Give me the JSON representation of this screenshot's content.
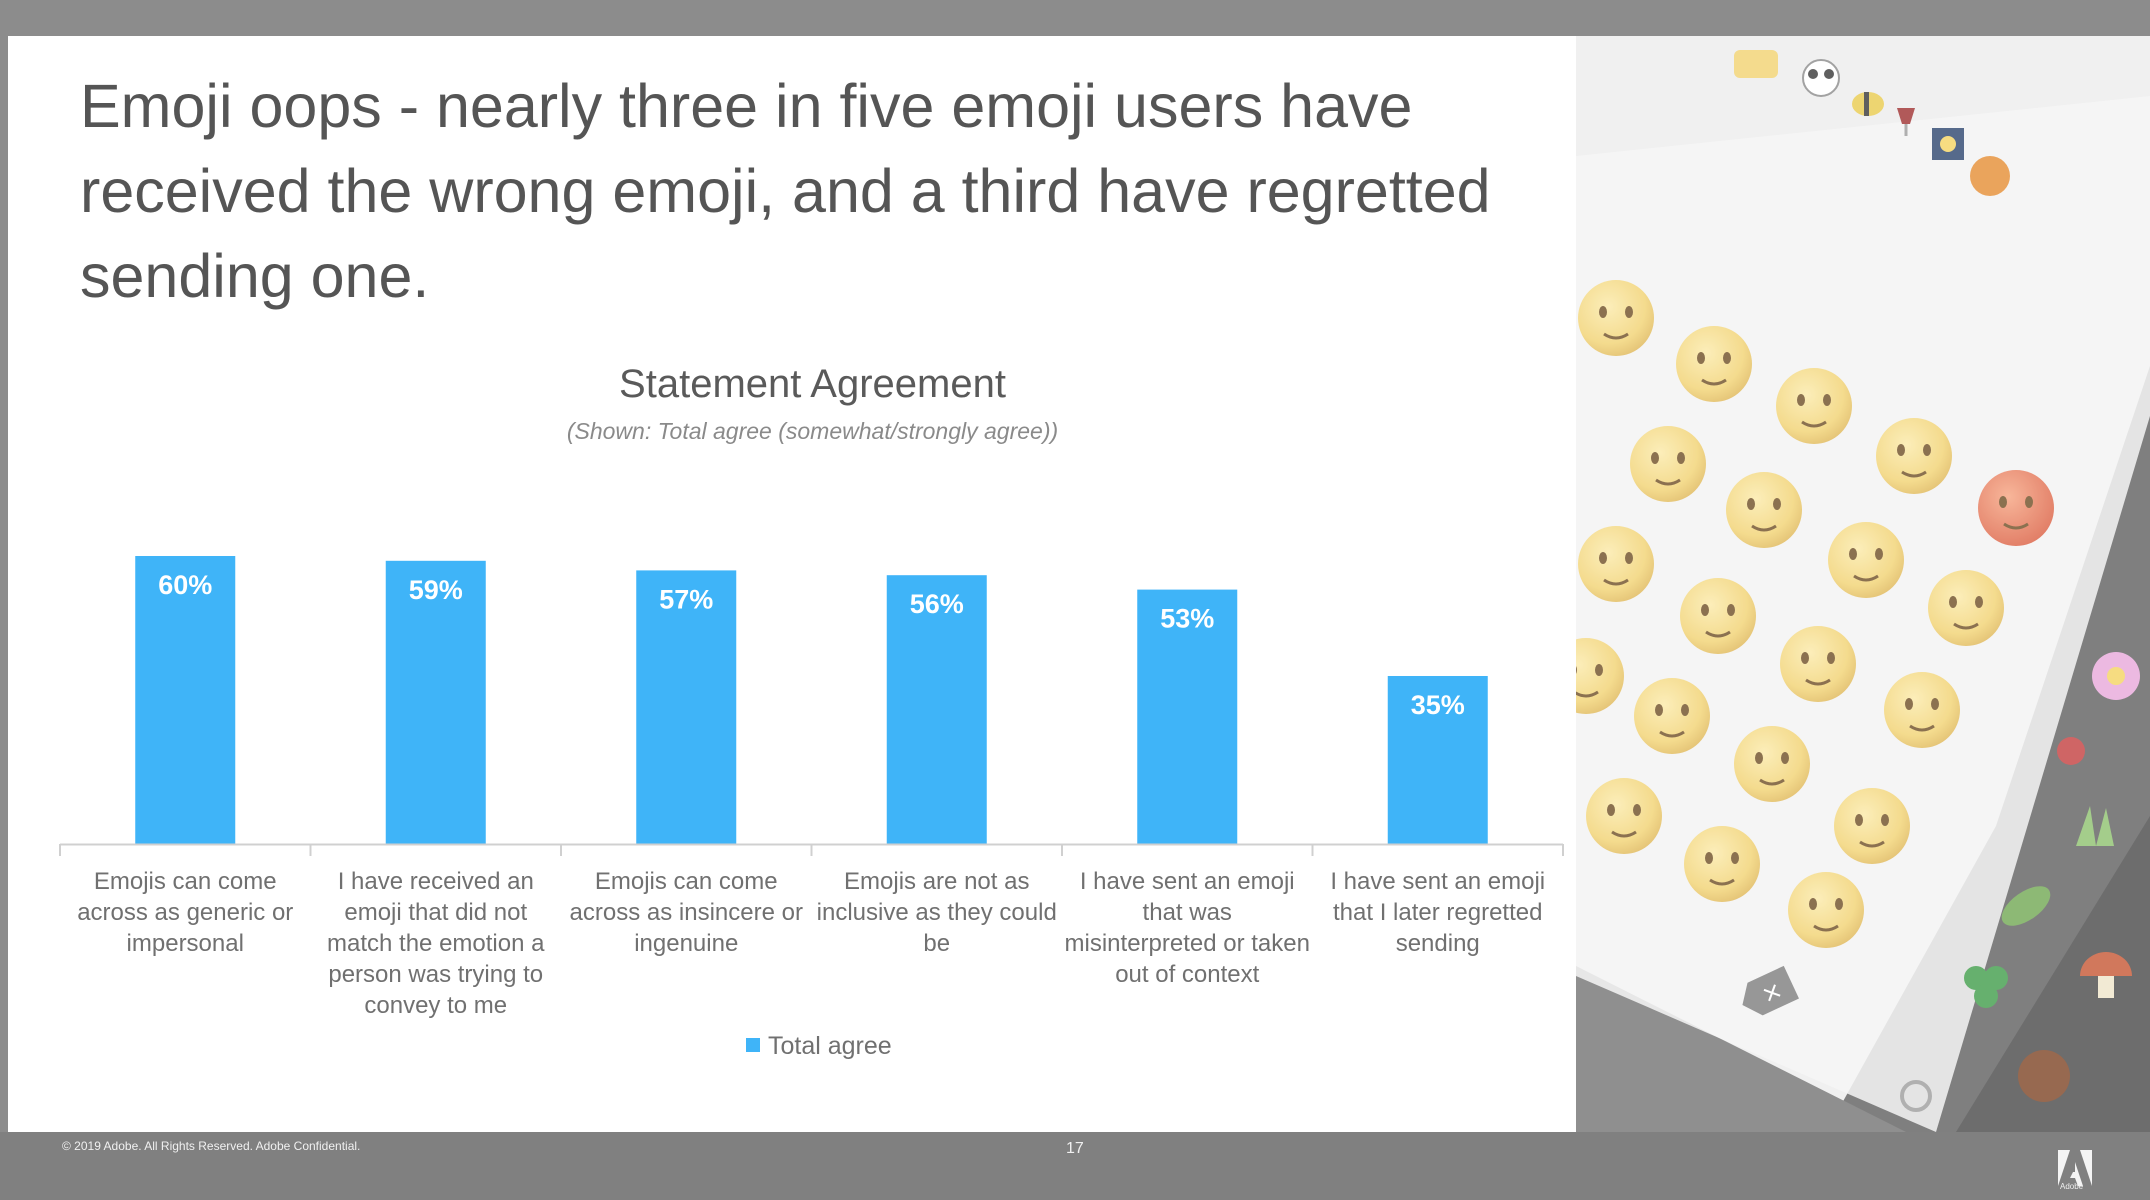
{
  "slide": {
    "title": "Emoji oops - nearly three in five emoji users have received the wrong emoji, and a third have regretted sending one.",
    "footer_copyright": "© 2019 Adobe.  All Rights Reserved. Adobe Confidential.",
    "page_number": "17",
    "logo_text": "Adobe"
  },
  "colors": {
    "bar": "#3fb4f8",
    "frame": "#8c8c8c",
    "title": "#555555"
  },
  "chart_data": {
    "type": "bar",
    "title": "Statement Agreement",
    "subtitle": "(Shown: Total agree (somewhat/strongly agree))",
    "categories": [
      "Emojis can come across as generic or impersonal",
      "I have received an emoji that did not match the emotion a person was trying to convey to me",
      "Emojis can come across as insincere or ingenuine",
      "Emojis are not as inclusive as they could be",
      "I have sent an emoji that was misinterpreted or taken out of context",
      "I have sent an emoji that I later regretted sending"
    ],
    "series": [
      {
        "name": "Total agree",
        "values": [
          60,
          59,
          57,
          56,
          53,
          35
        ]
      }
    ],
    "data_labels": [
      "60%",
      "59%",
      "57%",
      "56%",
      "53%",
      "35%"
    ],
    "ylim": [
      0,
      60
    ],
    "grid": false,
    "legend_position": "bottom"
  },
  "photo": {
    "icons": [
      "heart-eyes-face-icon",
      "unamused-face-icon",
      "kissing-face-icon",
      "winking-tongue-face-icon",
      "angry-face-icon",
      "sweat-face-icon",
      "kissing-heart-face-icon",
      "squinting-tongue-face-icon",
      "relieved-face-icon",
      "kissing-smiling-eyes-face-icon",
      "disappointed-face-icon",
      "crying-face-icon",
      "smiling-face-icon",
      "confused-face-icon",
      "persevering-face-icon",
      "tongue-face-icon",
      "frowning-face-icon",
      "sad-face-icon",
      "panda-icon",
      "bee-icon",
      "wine-glass-icon",
      "pumpkin-icon",
      "flower-icon",
      "clover-icon",
      "mushroom-icon",
      "chestnut-icon",
      "delete-key-icon"
    ]
  }
}
